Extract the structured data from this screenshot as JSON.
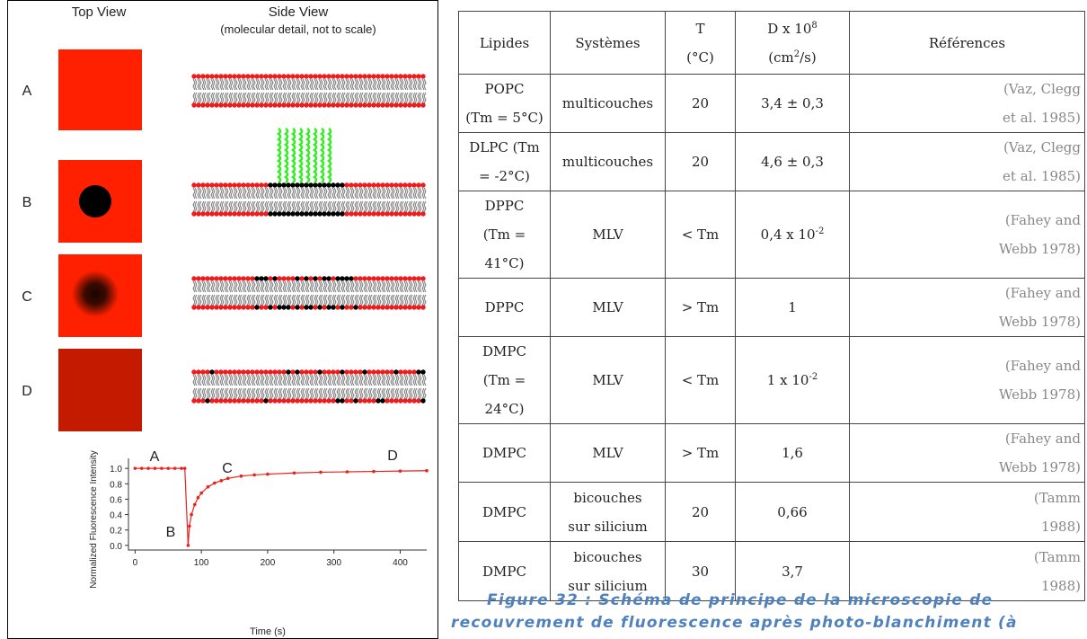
{
  "figure": {
    "top_view": "Top View",
    "side_view": "Side View",
    "side_view_note": "(molecular detail, not to scale)",
    "rows": [
      "A",
      "B",
      "C",
      "D"
    ],
    "plot": {
      "ylabel": "Normalized Fluorescence Intensity",
      "xlabel": "Time (s)",
      "annotations": [
        "A",
        "B",
        "C",
        "D"
      ],
      "color": "#e8231c",
      "xlim": [
        -10,
        440
      ],
      "ylim": [
        -0.06,
        1.13
      ],
      "xticks": [
        0,
        100,
        200,
        300,
        400
      ],
      "yticks": [
        {
          "value": 0,
          "label": "0.0"
        },
        {
          "value": 0.2,
          "label": "0.2"
        },
        {
          "value": 0.4,
          "label": "0.4"
        },
        {
          "value": 0.6,
          "label": "0.6"
        },
        {
          "value": 0.8,
          "label": "0.8"
        },
        {
          "value": 1,
          "label": "1.0"
        }
      ],
      "x": [
        0,
        10,
        20,
        30,
        40,
        50,
        60,
        70,
        75,
        80,
        82,
        85,
        90,
        95,
        100,
        110,
        120,
        130,
        140,
        160,
        180,
        200,
        240,
        280,
        320,
        360,
        400,
        440
      ],
      "y": [
        1,
        1,
        1,
        1,
        1,
        1,
        1,
        1,
        1,
        0,
        0.25,
        0.4,
        0.53,
        0.62,
        0.68,
        0.76,
        0.81,
        0.84,
        0.87,
        0.9,
        0.915,
        0.925,
        0.94,
        0.95,
        0.955,
        0.96,
        0.965,
        0.97
      ]
    }
  },
  "table": {
    "rows": [
      [
        [
          "Lipides"
        ],
        [
          "Systèmes"
        ],
        [
          "T",
          "(°C)"
        ],
        [
          [
            "D x 10",
            {
              "sup": "8"
            }
          ],
          [
            "(cm",
            {
              "sup": "2"
            },
            "/s)"
          ]
        ],
        [
          "Références"
        ]
      ],
      [
        [
          "POPC",
          "(Tm = 5°C)"
        ],
        [
          "multicouches"
        ],
        [
          "20"
        ],
        [
          "3,4 ± 0,3"
        ],
        [
          "(Vaz, Clegg",
          "et al. 1985)"
        ]
      ],
      [
        [
          "DLPC (Tm",
          "= -2°C)"
        ],
        [
          "multicouches"
        ],
        [
          "20"
        ],
        [
          "4,6 ± 0,3"
        ],
        [
          "(Vaz, Clegg",
          "et al. 1985)"
        ]
      ],
      [
        [
          "DPPC",
          "(Tm = 41°C)"
        ],
        [
          "MLV"
        ],
        [
          "< Tm"
        ],
        [
          [
            "0,4 x 10",
            {
              "sup": "-2"
            }
          ]
        ],
        [
          "(Fahey and",
          "Webb 1978)"
        ]
      ],
      [
        [
          "DPPC"
        ],
        [
          "MLV"
        ],
        [
          "> Tm"
        ],
        [
          "1"
        ],
        [
          "(Fahey and",
          "Webb 1978)"
        ]
      ],
      [
        [
          "DMPC",
          "(Tm = 24°C)"
        ],
        [
          "MLV"
        ],
        [
          "< Tm"
        ],
        [
          [
            "1 x 10",
            {
              "sup": "-2"
            }
          ]
        ],
        [
          "(Fahey and",
          "Webb 1978)"
        ]
      ],
      [
        [
          "DMPC"
        ],
        [
          "MLV"
        ],
        [
          "> Tm"
        ],
        [
          "1,6"
        ],
        [
          "(Fahey and",
          "Webb 1978)"
        ]
      ],
      [
        [
          "DMPC"
        ],
        [
          "bicouches",
          "sur silicium"
        ],
        [
          "20"
        ],
        [
          "0,66"
        ],
        [
          "(Tamm",
          "1988)"
        ]
      ],
      [
        [
          "DMPC"
        ],
        [
          "bicouches",
          "sur silicium"
        ],
        [
          "30"
        ],
        [
          "3,7"
        ],
        [
          "(Tamm",
          "1988)"
        ]
      ]
    ]
  },
  "caption": [
    "Figure 32 : Schéma de principe de la microscopie de",
    "recouvrement de fluorescence après photo-blanchiment (à"
  ]
}
